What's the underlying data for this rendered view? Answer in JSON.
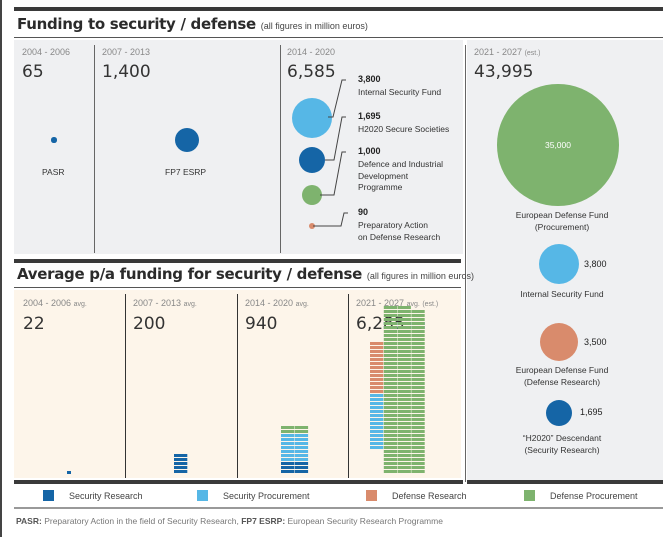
{
  "colors": {
    "security_research": "#1565a6",
    "security_procurement": "#56b7e6",
    "defense_research": "#d98b6c",
    "defense_procurement": "#7eb36e"
  },
  "top": {
    "title": "Funding to security / defense",
    "subtitle": "(all figures in million euros)",
    "periods": [
      {
        "label": "2004 - 2006",
        "total": "65",
        "programs": [
          {
            "name": "PASR",
            "value": 65,
            "category": "security_research"
          }
        ]
      },
      {
        "label": "2007 - 2013",
        "total": "1,400",
        "programs": [
          {
            "name": "FP7 ESRP",
            "value": 1400,
            "category": "security_research"
          }
        ]
      },
      {
        "label": "2014 - 2020",
        "total": "6,585",
        "programs": [
          {
            "name": "Internal Security Fund",
            "value_label": "3,800",
            "value": 3800,
            "category": "security_procurement"
          },
          {
            "name": "H2020 Secure Societies",
            "value_label": "1,695",
            "value": 1695,
            "category": "security_research"
          },
          {
            "name_lines": [
              "Defence and Industrial",
              "Development",
              "Programme"
            ],
            "value_label": "1,000",
            "value": 1000,
            "category": "defense_procurement"
          },
          {
            "name_lines": [
              "Preparatory Action",
              "on Defense Research"
            ],
            "value_label": "90",
            "value": 90,
            "category": "defense_research"
          }
        ]
      },
      {
        "label": "2021 - 2027",
        "label_suffix": "(est.)",
        "total": "43,995",
        "programs": [
          {
            "name_lines": [
              "European Defense Fund",
              "(Procurement)"
            ],
            "value_label": "35,000",
            "value": 35000,
            "category": "defense_procurement"
          },
          {
            "name": "Internal Security Fund",
            "value_label": "3,800",
            "value": 3800,
            "category": "security_procurement"
          },
          {
            "name_lines": [
              "European Defense Fund",
              "(Defense Research)"
            ],
            "value_label": "3,500",
            "value": 3500,
            "category": "defense_research"
          },
          {
            "name_lines": [
              "“H2020” Descendant",
              "(Security Research)"
            ],
            "value_label": "1,695",
            "value": 1695,
            "category": "security_research"
          }
        ]
      }
    ]
  },
  "bottom": {
    "title": "Average p/a funding for security / defense",
    "subtitle": "(all figures in million euros)",
    "periods": [
      {
        "label": "2004 - 2006",
        "avg": "avg.",
        "total": "22"
      },
      {
        "label": "2007 - 2013",
        "avg": "avg.",
        "total": "200"
      },
      {
        "label": "2014 - 2020",
        "avg": "avg.",
        "total": "940"
      },
      {
        "label": "2021 - 2027",
        "avg": "avg.",
        "est": "(est.)",
        "total": "6,285"
      }
    ]
  },
  "legend": [
    {
      "label": "Security Research",
      "key": "security_research"
    },
    {
      "label": "Security Procurement",
      "key": "security_procurement"
    },
    {
      "label": "Defense Research",
      "key": "defense_research"
    },
    {
      "label": "Defense Procurement",
      "key": "defense_procurement"
    }
  ],
  "footnote": {
    "abbr1": "PASR:",
    "text1": " Preparatory Action in the field of Security Research, ",
    "abbr2": "FP7 ESRP:",
    "text2": " European Security Research Programme"
  },
  "chart_data": [
    {
      "type": "bubble",
      "title": "Funding to security / defense",
      "subtitle": "(all figures in million euros)",
      "categories": [
        "2004 - 2006",
        "2007 - 2013",
        "2014 - 2020",
        "2021 - 2027 (est.)"
      ],
      "totals": [
        65,
        1400,
        6585,
        43995
      ],
      "series": [
        {
          "period": "2004 - 2006",
          "name": "PASR",
          "value": 65,
          "category": "Security Research"
        },
        {
          "period": "2007 - 2013",
          "name": "FP7 ESRP",
          "value": 1400,
          "category": "Security Research"
        },
        {
          "period": "2014 - 2020",
          "name": "Internal Security Fund",
          "value": 3800,
          "category": "Security Procurement"
        },
        {
          "period": "2014 - 2020",
          "name": "H2020 Secure Societies",
          "value": 1695,
          "category": "Security Research"
        },
        {
          "period": "2014 - 2020",
          "name": "Defence and Industrial Development Programme",
          "value": 1000,
          "category": "Defense Procurement"
        },
        {
          "period": "2014 - 2020",
          "name": "Preparatory Action on Defense Research",
          "value": 90,
          "category": "Defense Research"
        },
        {
          "period": "2021 - 2027 (est.)",
          "name": "European Defense Fund (Procurement)",
          "value": 35000,
          "category": "Defense Procurement"
        },
        {
          "period": "2021 - 2027 (est.)",
          "name": "Internal Security Fund",
          "value": 3800,
          "category": "Security Procurement"
        },
        {
          "period": "2021 - 2027 (est.)",
          "name": "European Defense Fund (Defense Research)",
          "value": 3500,
          "category": "Defense Research"
        },
        {
          "period": "2021 - 2027 (est.)",
          "name": "“H2020” Descendant (Security Research)",
          "value": 1695,
          "category": "Security Research"
        }
      ]
    },
    {
      "type": "bar",
      "subtype": "stacked-unit",
      "title": "Average p/a funding for security / defense",
      "subtitle": "(all figures in million euros)",
      "categories": [
        "2004 - 2006 avg.",
        "2007 - 2013 avg.",
        "2014 - 2020 avg.",
        "2021 - 2027 avg. (est.)"
      ],
      "series": [
        {
          "name": "Security Research",
          "values": [
            22,
            200,
            242,
            242
          ]
        },
        {
          "name": "Security Procurement",
          "values": [
            0,
            0,
            543,
            543
          ]
        },
        {
          "name": "Defense Research",
          "values": [
            0,
            0,
            13,
            500
          ]
        },
        {
          "name": "Defense Procurement",
          "values": [
            0,
            0,
            143,
            5000
          ]
        }
      ],
      "totals": [
        22,
        200,
        940,
        6285
      ]
    }
  ]
}
